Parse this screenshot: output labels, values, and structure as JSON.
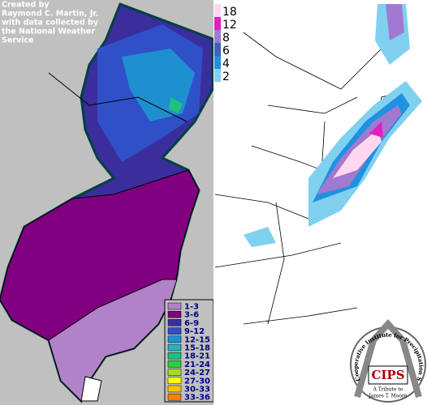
{
  "left_map": {
    "credit": [
      "Created by",
      "Raymond C. Martin, Jr.",
      "with data collected by",
      "the National Weather",
      "Service"
    ],
    "legend": [
      {
        "label": "1-3",
        "color": "#b282c8"
      },
      {
        "label": "3-6",
        "color": "#800080"
      },
      {
        "label": "6-9",
        "color": "#3a2e9c"
      },
      {
        "label": "9-12",
        "color": "#3050c8"
      },
      {
        "label": "12-15",
        "color": "#1e90d0"
      },
      {
        "label": "15-18",
        "color": "#28b0c0"
      },
      {
        "label": "18-21",
        "color": "#20c080"
      },
      {
        "label": "21-24",
        "color": "#30d040"
      },
      {
        "label": "24-27",
        "color": "#a0e020"
      },
      {
        "label": "27-30",
        "color": "#ffff00"
      },
      {
        "label": "30-33",
        "color": "#ffc000"
      },
      {
        "label": "33-36",
        "color": "#ff8000"
      }
    ]
  },
  "right_map": {
    "legend": [
      {
        "value": 18,
        "color": "#ffd8f0"
      },
      {
        "value": 12,
        "color": "#e020c0"
      },
      {
        "value": 8,
        "color": "#a07ad0"
      },
      {
        "value": 6,
        "color": "#4060c0"
      },
      {
        "value": 4,
        "color": "#2090e0"
      },
      {
        "value": 2,
        "color": "#80d0f0"
      }
    ]
  },
  "logo": {
    "name": "CIPS",
    "ring_text": "Cooperative Institute for Precipitation Systems",
    "tribute": "A Tribute to",
    "person": "James T. Moore"
  }
}
